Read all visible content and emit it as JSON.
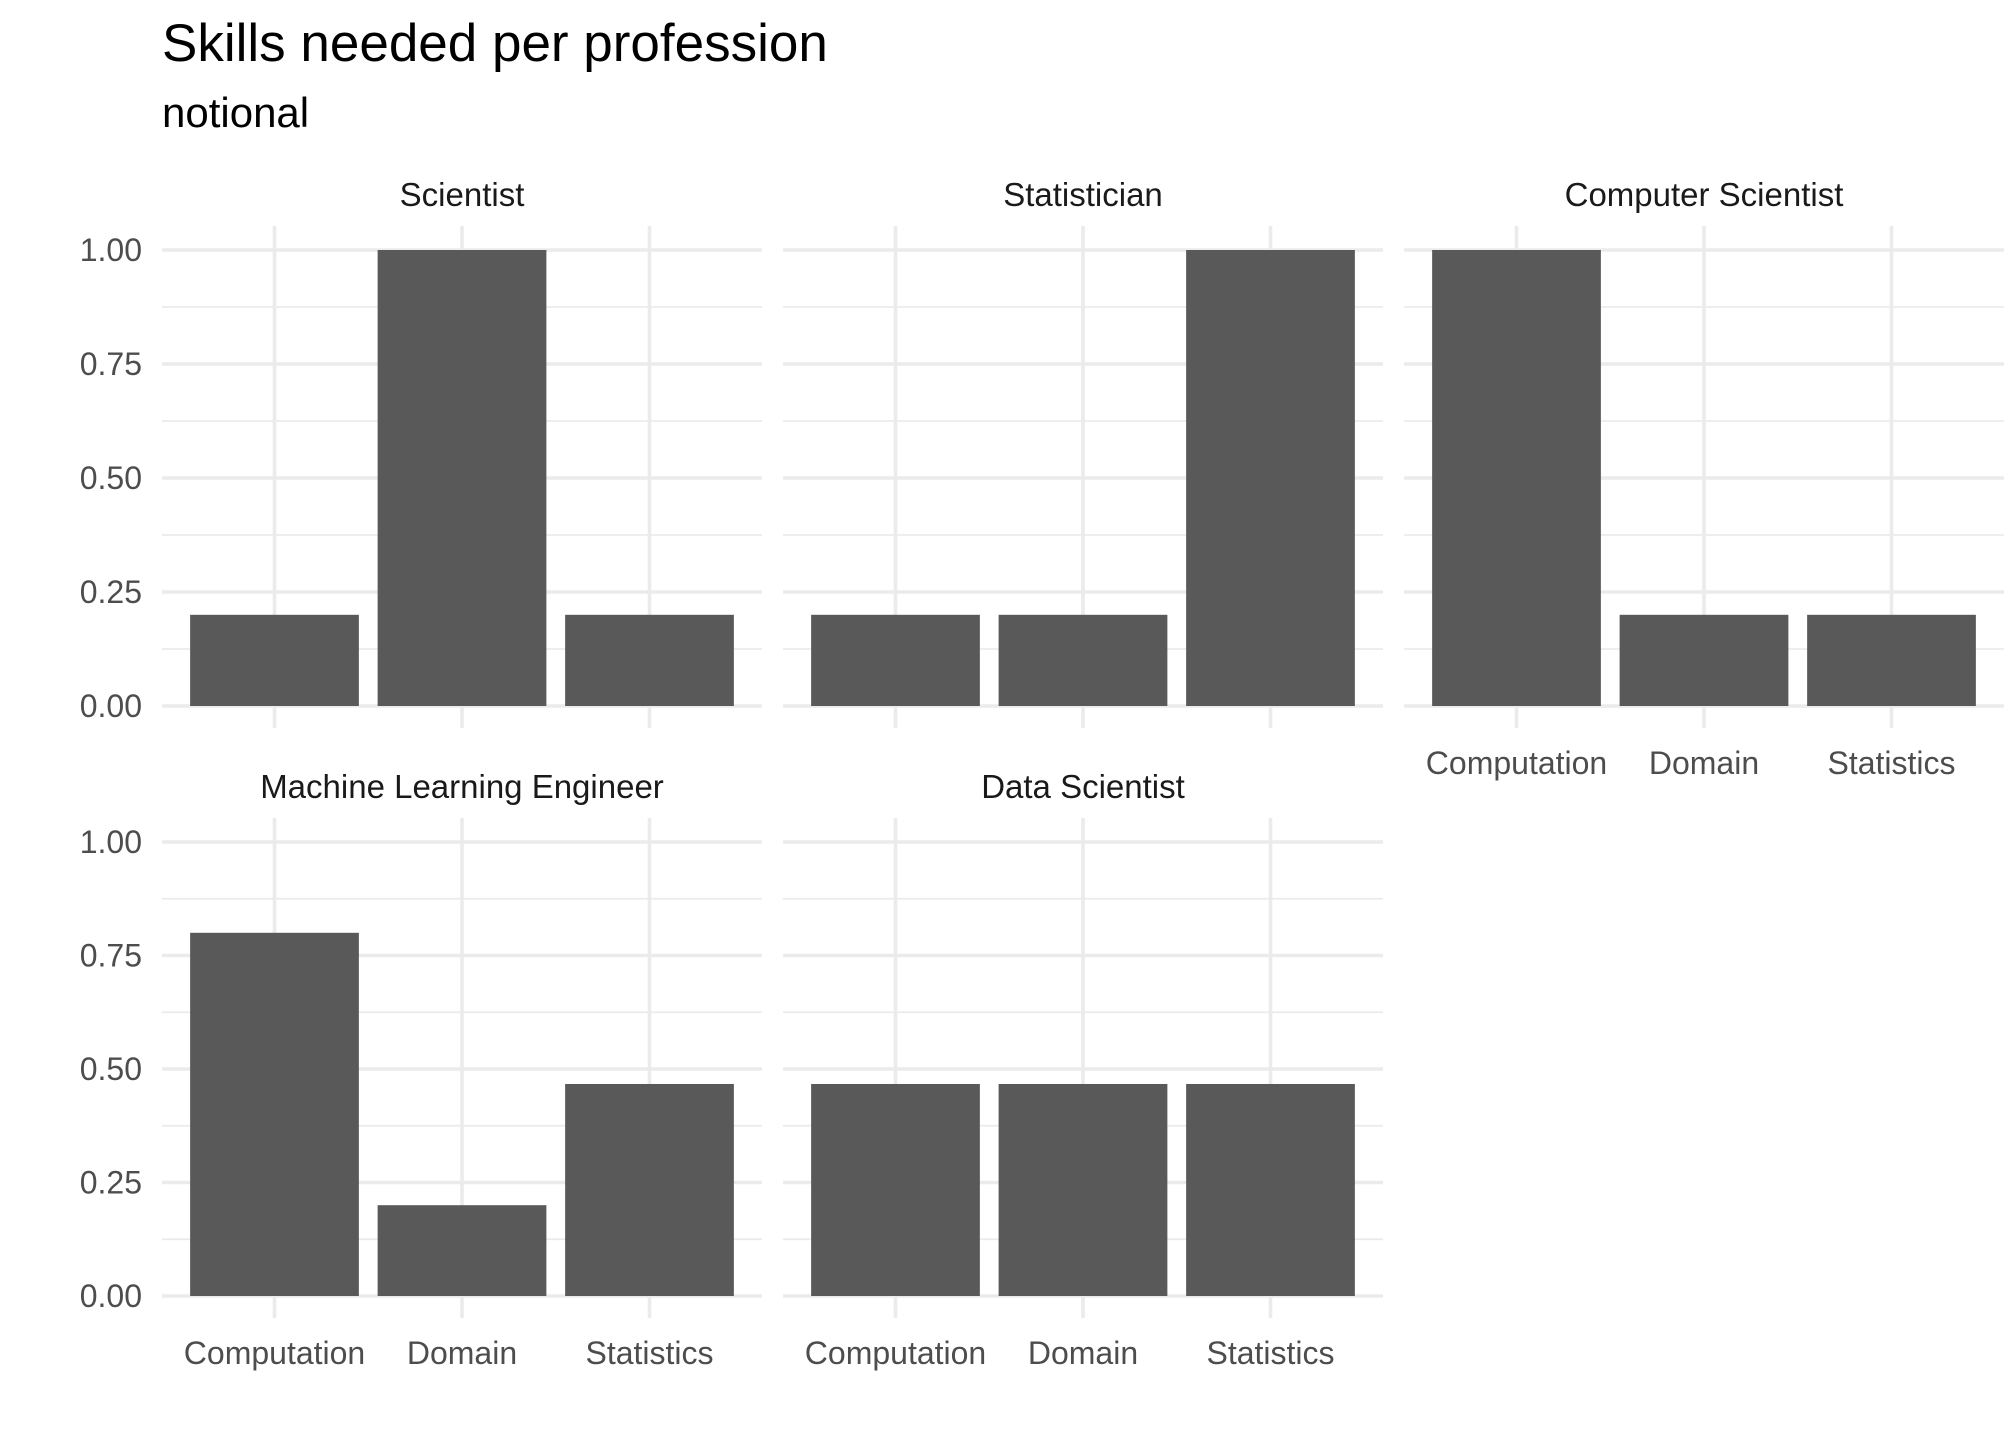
{
  "chart_data": {
    "type": "bar",
    "title": "Skills needed per profession",
    "subtitle": "notional",
    "xlabel": "",
    "ylabel": "",
    "ylim": [
      0,
      1
    ],
    "yticks": [
      "0.00",
      "0.25",
      "0.50",
      "0.75",
      "1.00"
    ],
    "categories": [
      "Computation",
      "Domain",
      "Statistics"
    ],
    "grid": true,
    "legend": "none",
    "bar_color": "#595959",
    "facets": [
      {
        "name": "Scientist",
        "values": [
          0.2,
          1.0,
          0.2
        ]
      },
      {
        "name": "Statistician",
        "values": [
          0.2,
          0.2,
          1.0
        ]
      },
      {
        "name": "Computer Scientist",
        "values": [
          1.0,
          0.2,
          0.2
        ]
      },
      {
        "name": "Machine Learning Engineer",
        "values": [
          0.8,
          0.2,
          0.467
        ]
      },
      {
        "name": "Data Scientist",
        "values": [
          0.467,
          0.467,
          0.467
        ]
      }
    ]
  }
}
